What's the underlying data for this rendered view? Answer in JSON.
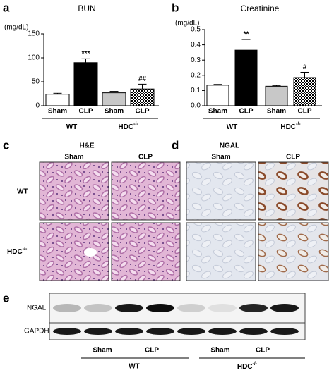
{
  "chart_data": [
    {
      "type": "bar",
      "panel": "a",
      "title": "BUN",
      "y_label": "(mg/dL)",
      "categories": [
        "Sham",
        "CLP",
        "Sham",
        "CLP"
      ],
      "groups": [
        {
          "label": "WT"
        },
        {
          "label": "HDC",
          "sup": "-/-"
        }
      ],
      "values": [
        24,
        90,
        27,
        35
      ],
      "errors": [
        2,
        8,
        3,
        10
      ],
      "annotations": [
        null,
        "***",
        null,
        "##"
      ],
      "colors": [
        "#ffffff",
        "#000000",
        "#c8c8c8",
        "#000000"
      ],
      "hatch": [
        false,
        false,
        false,
        true
      ],
      "ylim": [
        0,
        150
      ],
      "yticks": [
        0,
        50,
        100,
        150
      ]
    },
    {
      "type": "bar",
      "panel": "b",
      "title": "Creatinine",
      "y_label": "(mg/dL)",
      "categories": [
        "Sham",
        "CLP",
        "Sham",
        "CLP"
      ],
      "groups": [
        {
          "label": "WT"
        },
        {
          "label": "HDC",
          "sup": "-/-"
        }
      ],
      "values": [
        0.135,
        0.365,
        0.128,
        0.185
      ],
      "errors": [
        0.005,
        0.07,
        0.005,
        0.035
      ],
      "annotations": [
        null,
        "**",
        null,
        "#"
      ],
      "colors": [
        "#ffffff",
        "#000000",
        "#c8c8c8",
        "#000000"
      ],
      "hatch": [
        false,
        false,
        false,
        true
      ],
      "ylim": [
        0,
        0.5
      ],
      "yticks": [
        {
          "value": 0,
          "label": "0.0"
        },
        0.1,
        0.2,
        0.3,
        0.4,
        0.5
      ]
    }
  ],
  "panel_c": {
    "label": "c",
    "title": "H&E",
    "columns": [
      "Sham",
      "CLP"
    ],
    "rows": [
      {
        "label": "WT"
      },
      {
        "label": "HDC",
        "sup": "-/-"
      }
    ]
  },
  "panel_d": {
    "label": "d",
    "title": "NGAL",
    "columns": [
      "Sham",
      "CLP"
    ]
  },
  "panel_e": {
    "label": "e",
    "rows": [
      "NGAL",
      "GAPDH"
    ],
    "lanes": [
      "Sham",
      "CLP",
      "Sham",
      "CLP"
    ],
    "groups": [
      {
        "label": "WT"
      },
      {
        "label": "HDC",
        "sup": "-/-"
      }
    ]
  }
}
